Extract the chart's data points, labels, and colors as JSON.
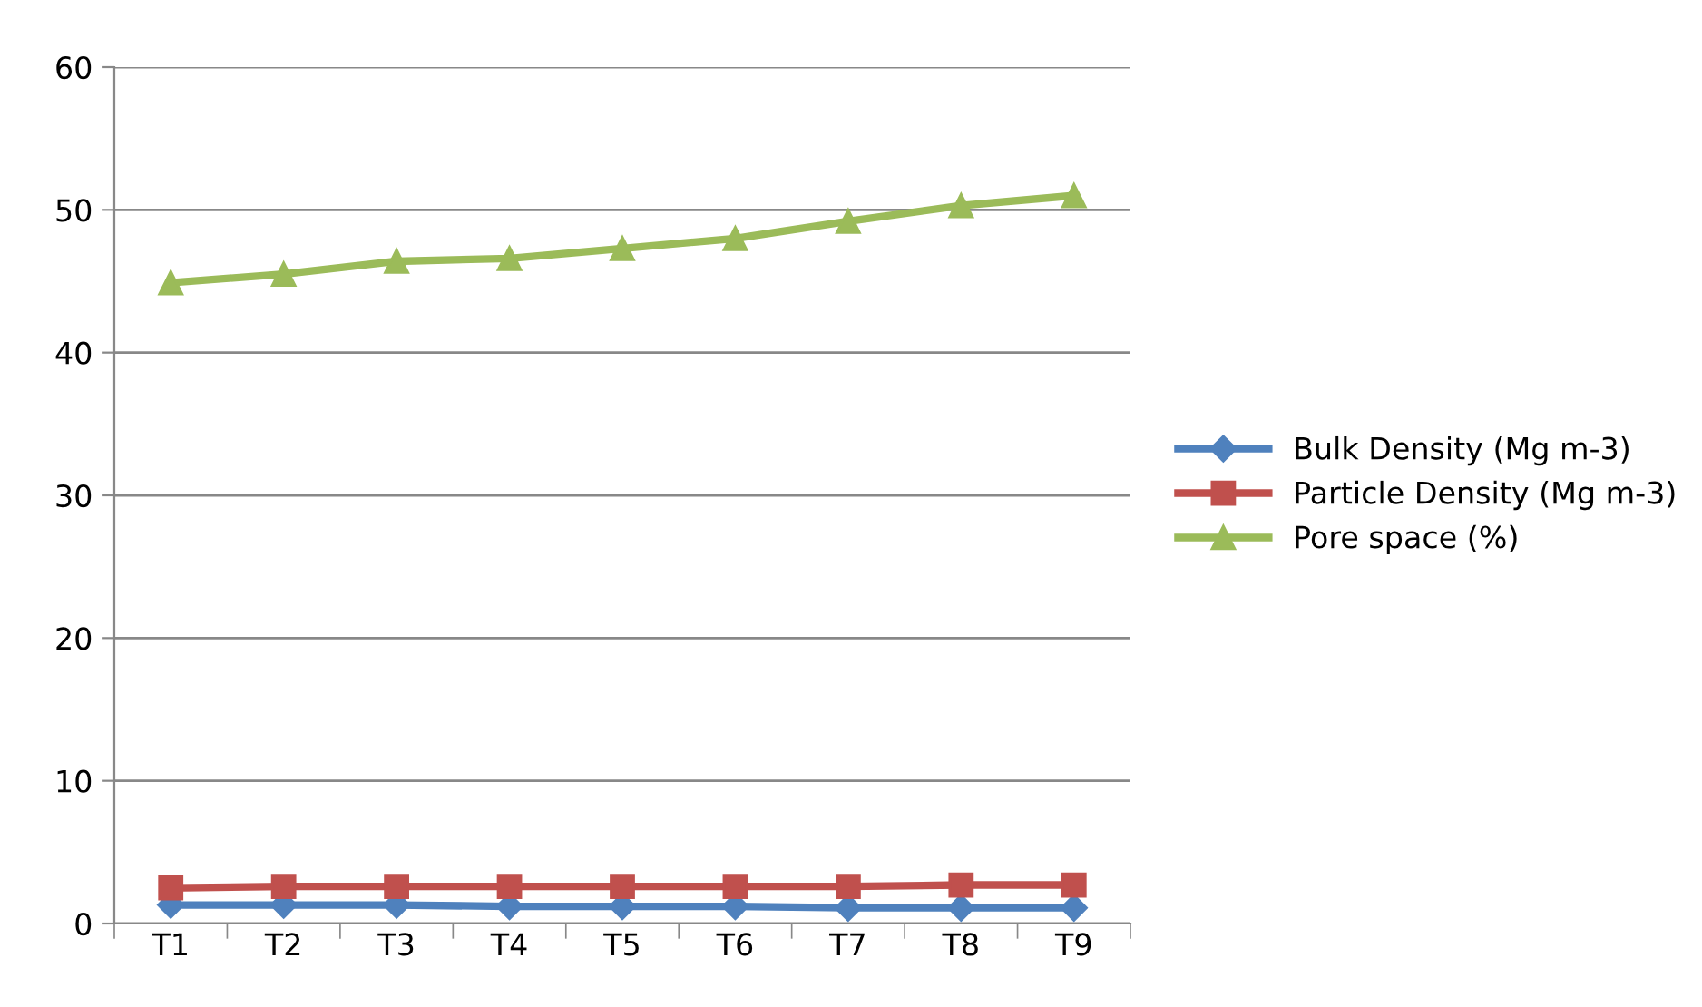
{
  "chart_data": {
    "type": "line",
    "categories": [
      "T1",
      "T2",
      "T3",
      "T4",
      "T5",
      "T6",
      "T7",
      "T8",
      "T9"
    ],
    "series": [
      {
        "name": "Bulk Density (Mg m-3)",
        "color": "#4f81bd",
        "marker": "diamond",
        "values": [
          1.3,
          1.3,
          1.3,
          1.2,
          1.2,
          1.2,
          1.1,
          1.1,
          1.1
        ]
      },
      {
        "name": "Particle Density (Mg m-3)",
        "color": "#c0504d",
        "marker": "square",
        "values": [
          2.5,
          2.6,
          2.6,
          2.6,
          2.6,
          2.6,
          2.6,
          2.7,
          2.7
        ]
      },
      {
        "name": "Pore space (%)",
        "color": "#9bbb59",
        "marker": "triangle",
        "values": [
          44.9,
          45.5,
          46.4,
          46.6,
          47.3,
          48.0,
          49.2,
          50.3,
          51.0
        ]
      }
    ],
    "ylim": [
      0,
      60
    ],
    "yticks": [
      0,
      10,
      20,
      30,
      40,
      50,
      60
    ],
    "grid": "y",
    "legend": "right",
    "line_style": "solid"
  }
}
